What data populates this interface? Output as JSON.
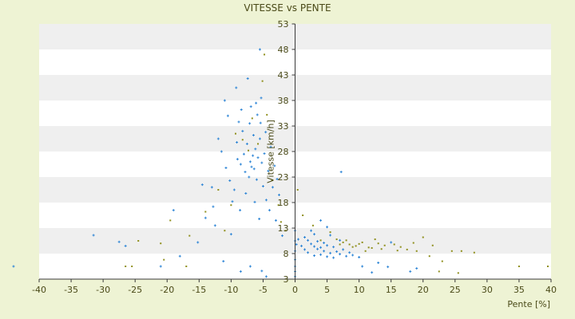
{
  "chart_data": {
    "type": "scatter",
    "title": "VITESSE vs PENTE",
    "xlabel": "Pente [%]",
    "ylabel": "Vitesse [km/h]",
    "xlim": [
      -40,
      40
    ],
    "ylim": [
      3,
      53
    ],
    "x_ticks": [
      -40,
      -35,
      -30,
      -25,
      -20,
      -15,
      -10,
      -5,
      0,
      5,
      10,
      15,
      20,
      25,
      30,
      35,
      40
    ],
    "y_ticks": [
      3,
      8,
      13,
      18,
      23,
      28,
      33,
      38,
      43,
      48,
      53
    ],
    "grid": "horizontal alternating bands",
    "legend": "none",
    "colors": {
      "page_background": "#eef3d4",
      "band_light": "#ffffff",
      "band_shaded": "#efefef",
      "axis": "#3a3a3a",
      "text": "#4a4a18",
      "series_1": "#2f86d6",
      "series_2": "#8f8f1c"
    },
    "series": [
      {
        "color": "#2f86d6",
        "marker": "plus",
        "points": [
          [
            -44,
            5.5
          ],
          [
            -31.5,
            11.6
          ],
          [
            -27.5,
            10.3
          ],
          [
            -26.5,
            9.5
          ],
          [
            -21,
            5.5
          ],
          [
            -19,
            16.5
          ],
          [
            -18,
            7.5
          ],
          [
            -15.2,
            10.2
          ],
          [
            -14.5,
            21.5
          ],
          [
            -12.5,
            13.5
          ],
          [
            -11.2,
            6.5
          ],
          [
            -10,
            11.8
          ],
          [
            -9.5,
            20.5
          ],
          [
            -9,
            26.5
          ],
          [
            -8.5,
            25.5
          ],
          [
            -8.2,
            32
          ],
          [
            -8,
            27.5
          ],
          [
            -7.8,
            24
          ],
          [
            -7.5,
            29.5
          ],
          [
            -7.2,
            23
          ],
          [
            -7,
            26
          ],
          [
            -6.8,
            25
          ],
          [
            -6.6,
            27.2
          ],
          [
            -6.4,
            24.6
          ],
          [
            -6.2,
            28.5
          ],
          [
            -6,
            22.5
          ],
          [
            -5.8,
            26.8
          ],
          [
            -5.5,
            30.5
          ],
          [
            -5.2,
            25.8
          ],
          [
            -5,
            21.2
          ],
          [
            -4.8,
            27.6
          ],
          [
            -4.5,
            18.5
          ],
          [
            -4.2,
            24.2
          ],
          [
            -4,
            16.5
          ],
          [
            -3.5,
            21
          ],
          [
            -3,
            14.5
          ],
          [
            -2.5,
            19.5
          ],
          [
            -2,
            11.5
          ],
          [
            -11,
            38
          ],
          [
            -10.5,
            35
          ],
          [
            -9.2,
            40.5
          ],
          [
            -8.8,
            33.8
          ],
          [
            -7.4,
            42.3
          ],
          [
            -6.9,
            36.8
          ],
          [
            -5.9,
            35.2
          ],
          [
            -5.3,
            38.5
          ],
          [
            -4.6,
            31.8
          ],
          [
            -12,
            30.5
          ],
          [
            -11.5,
            28
          ],
          [
            -10.8,
            24.8
          ],
          [
            -10.2,
            22.3
          ],
          [
            -9.8,
            18.2
          ],
          [
            -13,
            21
          ],
          [
            -12.8,
            17.2
          ],
          [
            -14,
            15
          ],
          [
            -8.6,
            16.5
          ],
          [
            -7.7,
            19.8
          ],
          [
            -6.3,
            18.1
          ],
          [
            -5.6,
            14.8
          ],
          [
            -9.1,
            29.8
          ],
          [
            -8.4,
            36.2
          ],
          [
            -7.1,
            33.5
          ],
          [
            -6.5,
            31.2
          ],
          [
            -6.1,
            37.5
          ],
          [
            -5.4,
            33.6
          ],
          [
            -3.8,
            28.9
          ],
          [
            -3.2,
            25.2
          ],
          [
            -2.8,
            22.6
          ],
          [
            0,
            3.5
          ],
          [
            0,
            4.5
          ],
          [
            0,
            5.5
          ],
          [
            0,
            6.8
          ],
          [
            0,
            8.5
          ],
          [
            0,
            10.5
          ],
          [
            0,
            12.5
          ],
          [
            0.2,
            9.8
          ],
          [
            0.5,
            10.8
          ],
          [
            1,
            9.5
          ],
          [
            1.5,
            8.8
          ],
          [
            1.5,
            11.2
          ],
          [
            2,
            10.6
          ],
          [
            2,
            8.2
          ],
          [
            2.5,
            9.9
          ],
          [
            2.5,
            12.5
          ],
          [
            3,
            7.6
          ],
          [
            3,
            9.4
          ],
          [
            3,
            11.8
          ],
          [
            3.5,
            8.9
          ],
          [
            3.5,
            10.4
          ],
          [
            4,
            7.8
          ],
          [
            4,
            9.2
          ],
          [
            4,
            14.5
          ],
          [
            4.5,
            8.5
          ],
          [
            4.5,
            10.1
          ],
          [
            5,
            7.4
          ],
          [
            5,
            9.6
          ],
          [
            5,
            13.2
          ],
          [
            5.5,
            8.1
          ],
          [
            5.5,
            11.6
          ],
          [
            6,
            7.2
          ],
          [
            6,
            9.3
          ],
          [
            6.5,
            8.4
          ],
          [
            7,
            7.9
          ],
          [
            7,
            10.6
          ],
          [
            7.5,
            8.8
          ],
          [
            8,
            7.5
          ],
          [
            8.5,
            8.2
          ],
          [
            9,
            7.7
          ],
          [
            10,
            7.3
          ],
          [
            10.5,
            5.5
          ],
          [
            12,
            4.3
          ],
          [
            13,
            6.2
          ],
          [
            14.5,
            5.4
          ],
          [
            15,
            10.2
          ],
          [
            18,
            4.5
          ],
          [
            19,
            5.1
          ],
          [
            7.2,
            24
          ],
          [
            -5.5,
            48
          ],
          [
            -4.5,
            3.5
          ],
          [
            -7,
            5.5
          ],
          [
            -5.2,
            4.6
          ],
          [
            -8.5,
            4.5
          ]
        ]
      },
      {
        "color": "#8f8f1c",
        "marker": "dot",
        "points": [
          [
            -26.5,
            5.5
          ],
          [
            -25.5,
            5.5
          ],
          [
            -24.5,
            10.5
          ],
          [
            -21,
            10
          ],
          [
            -20.5,
            6.8
          ],
          [
            -19.5,
            14.5
          ],
          [
            -17,
            5.5
          ],
          [
            -16.5,
            11.5
          ],
          [
            -14,
            16.2
          ],
          [
            -12,
            20.5
          ],
          [
            -11,
            12.5
          ],
          [
            -10,
            17.5
          ],
          [
            -9.3,
            31.5
          ],
          [
            -8.2,
            30.3
          ],
          [
            -7.3,
            28.2
          ],
          [
            -6.7,
            34.5
          ],
          [
            -5.8,
            29.5
          ],
          [
            -5.1,
            41.8
          ],
          [
            -4.8,
            47
          ],
          [
            -4.4,
            35.2
          ],
          [
            -3.6,
            22.4
          ],
          [
            -2.6,
            17.5
          ],
          [
            -2.2,
            14.2
          ],
          [
            -1.5,
            12.5
          ],
          [
            0.4,
            20.5
          ],
          [
            1.2,
            15.5
          ],
          [
            2.8,
            13.5
          ],
          [
            4,
            10.6
          ],
          [
            5.5,
            12.2
          ],
          [
            6.5,
            10.8
          ],
          [
            7.5,
            10.2
          ],
          [
            8.5,
            9.8
          ],
          [
            9.5,
            9.5
          ],
          [
            10.5,
            10.2
          ],
          [
            11.5,
            9.2
          ],
          [
            12.5,
            10.8
          ],
          [
            13.5,
            8.9
          ],
          [
            14,
            9.6
          ],
          [
            15.5,
            9.8
          ],
          [
            16.5,
            9.3
          ],
          [
            17.5,
            8.8
          ],
          [
            18.5,
            10.1
          ],
          [
            19,
            8.5
          ],
          [
            20,
            11.2
          ],
          [
            21,
            7.5
          ],
          [
            21.5,
            9.6
          ],
          [
            22.5,
            4.5
          ],
          [
            23,
            6.5
          ],
          [
            24.5,
            8.5
          ],
          [
            25.5,
            4.2
          ],
          [
            26,
            8.5
          ],
          [
            28,
            8.2
          ],
          [
            35,
            5.5
          ],
          [
            39.5,
            5.5
          ],
          [
            12,
            9.1
          ],
          [
            11,
            8.5
          ],
          [
            13,
            10
          ],
          [
            16,
            8.6
          ],
          [
            9,
            9.3
          ],
          [
            8,
            10.6
          ],
          [
            10,
            9.9
          ],
          [
            7,
            9.8
          ]
        ]
      }
    ]
  }
}
